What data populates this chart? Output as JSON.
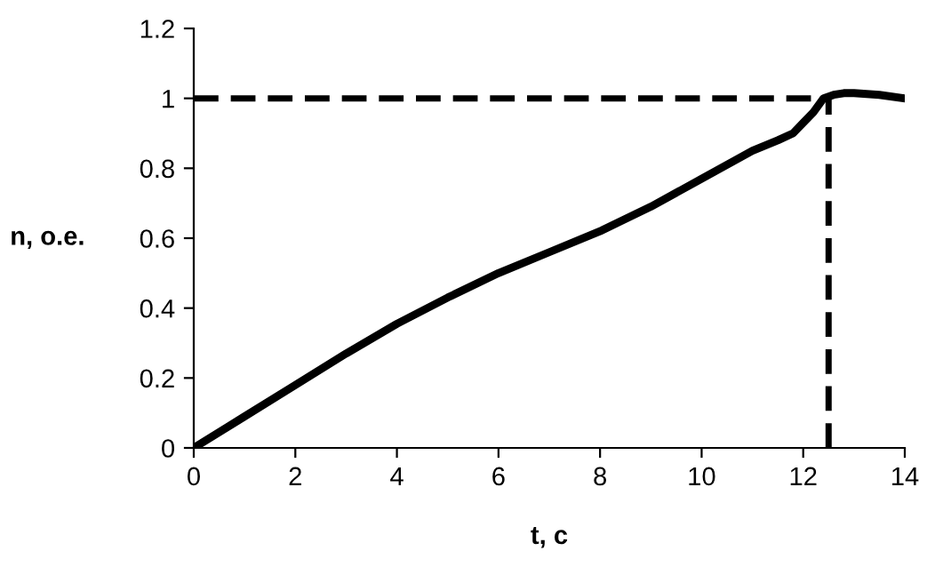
{
  "chart_data": {
    "type": "line",
    "xlabel": "t, c",
    "ylabel": "n, o.e.",
    "x": [
      0,
      1,
      2,
      3,
      4,
      5,
      6,
      7,
      8,
      9,
      10,
      11,
      11.5,
      11.8,
      12,
      12.2,
      12.4,
      12.6,
      12.8,
      13,
      13.5,
      14
    ],
    "series": [
      {
        "color": "#000000",
        "values": [
          0,
          0.09,
          0.18,
          0.27,
          0.355,
          0.43,
          0.5,
          0.56,
          0.62,
          0.69,
          0.77,
          0.85,
          0.88,
          0.9,
          0.93,
          0.96,
          1.0,
          1.01,
          1.015,
          1.015,
          1.01,
          1.0
        ]
      }
    ],
    "xlim": [
      0,
      14
    ],
    "xticks": [
      0,
      2,
      4,
      6,
      8,
      10,
      12,
      14
    ],
    "ylim": [
      0,
      1.2
    ],
    "yticks": [
      0,
      0.2,
      0.4,
      0.6,
      0.8,
      1,
      1.2
    ],
    "ref_lines": [
      {
        "axis": "y",
        "value": 1,
        "color": "#000000",
        "line_style": "dashed"
      },
      {
        "axis": "x",
        "value": 12.5,
        "color": "#000000",
        "line_style": "dashed"
      }
    ],
    "grid": false,
    "legend": false,
    "marker": "none",
    "line_style": "solid"
  }
}
